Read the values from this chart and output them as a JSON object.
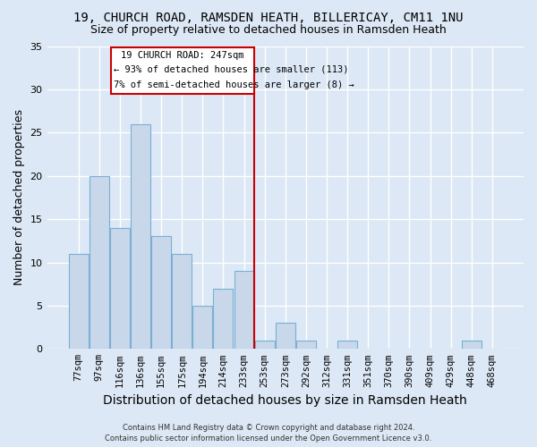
{
  "title": "19, CHURCH ROAD, RAMSDEN HEATH, BILLERICAY, CM11 1NU",
  "subtitle": "Size of property relative to detached houses in Ramsden Heath",
  "xlabel": "Distribution of detached houses by size in Ramsden Heath",
  "ylabel": "Number of detached properties",
  "bar_labels": [
    "77sqm",
    "97sqm",
    "116sqm",
    "136sqm",
    "155sqm",
    "175sqm",
    "194sqm",
    "214sqm",
    "233sqm",
    "253sqm",
    "273sqm",
    "292sqm",
    "312sqm",
    "331sqm",
    "351sqm",
    "370sqm",
    "390sqm",
    "409sqm",
    "429sqm",
    "448sqm",
    "468sqm"
  ],
  "bar_values": [
    11,
    20,
    14,
    26,
    13,
    11,
    5,
    7,
    9,
    1,
    3,
    1,
    0,
    1,
    0,
    0,
    0,
    0,
    0,
    1,
    0
  ],
  "bar_color": "#c8d8ea",
  "bar_edge_color": "#7aafd4",
  "vline_color": "#cc0000",
  "annotation_title": "19 CHURCH ROAD: 247sqm",
  "annotation_line1": "← 93% of detached houses are smaller (113)",
  "annotation_line2": "7% of semi-detached houses are larger (8) →",
  "annotation_box_color": "#cc0000",
  "annotation_bg": "white",
  "ylim": [
    0,
    35
  ],
  "yticks": [
    0,
    5,
    10,
    15,
    20,
    25,
    30,
    35
  ],
  "footer_line1": "Contains HM Land Registry data © Crown copyright and database right 2024.",
  "footer_line2": "Contains public sector information licensed under the Open Government Licence v3.0.",
  "background_color": "#dce8f5",
  "plot_bg_color": "#dce8f5",
  "grid_color": "white",
  "title_fontsize": 10,
  "subtitle_fontsize": 9,
  "axis_label_fontsize": 9,
  "tick_fontsize": 7.5
}
